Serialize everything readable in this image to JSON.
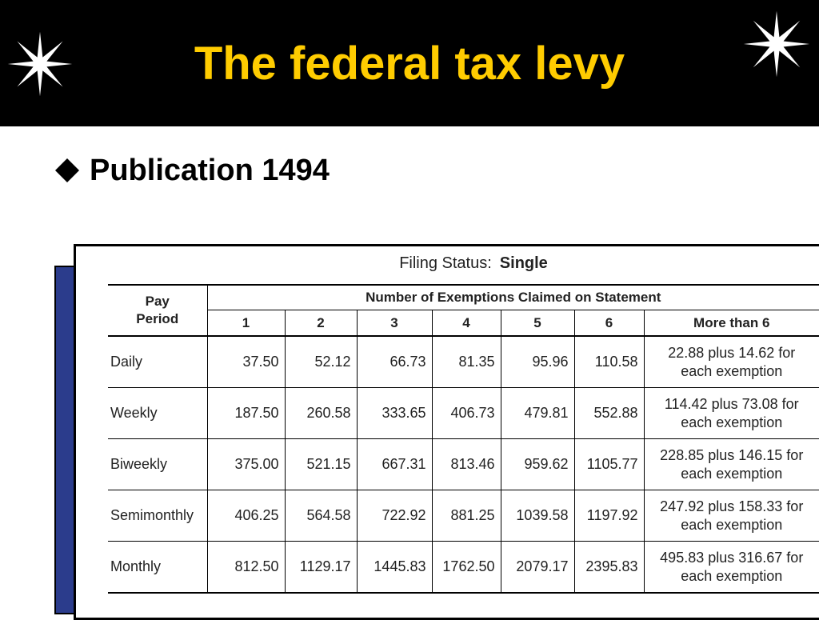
{
  "slide": {
    "title": "The federal tax levy",
    "bullet": "Publication 1494",
    "colors": {
      "header_bg": "#000000",
      "title": "#FFCC00",
      "accent_box": "#2B3C8C"
    }
  },
  "table": {
    "filing_status_label": "Filing Status:",
    "filing_status_value": "Single",
    "pay_period_line1": "Pay",
    "pay_period_line2": "Period",
    "exemptions_header": "Number of Exemptions Claimed on Statement",
    "columns": [
      "1",
      "2",
      "3",
      "4",
      "5",
      "6",
      "More than 6"
    ],
    "rows": [
      {
        "period": "Daily",
        "values": [
          "37.50",
          "52.12",
          "66.73",
          "81.35",
          "95.96",
          "110.58"
        ],
        "more_line1": "22.88 plus 14.62 for",
        "more_line2": "each exemption"
      },
      {
        "period": "Weekly",
        "values": [
          "187.50",
          "260.58",
          "333.65",
          "406.73",
          "479.81",
          "552.88"
        ],
        "more_line1": "114.42 plus 73.08 for",
        "more_line2": "each exemption"
      },
      {
        "period": "Biweekly",
        "values": [
          "375.00",
          "521.15",
          "667.31",
          "813.46",
          "959.62",
          "1105.77"
        ],
        "more_line1": "228.85 plus 146.15 for",
        "more_line2": "each exemption"
      },
      {
        "period": "Semimonthly",
        "values": [
          "406.25",
          "564.58",
          "722.92",
          "881.25",
          "1039.58",
          "1197.92"
        ],
        "more_line1": "247.92 plus 158.33 for",
        "more_line2": "each exemption"
      },
      {
        "period": "Monthly",
        "values": [
          "812.50",
          "1129.17",
          "1445.83",
          "1762.50",
          "2079.17",
          "2395.83"
        ],
        "more_line1": "495.83 plus 316.67 for",
        "more_line2": "each exemption"
      }
    ]
  }
}
